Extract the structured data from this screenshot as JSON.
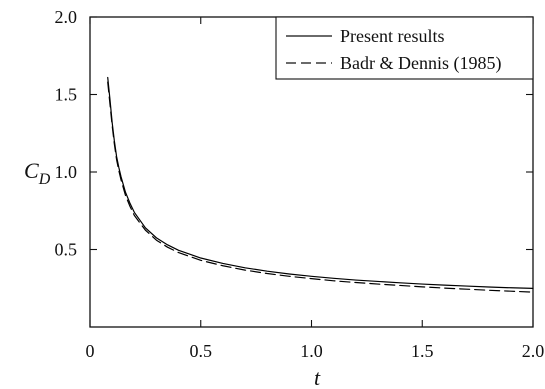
{
  "chart_data": {
    "type": "line",
    "title": "",
    "xlabel": "t",
    "ylabel": "C_D",
    "ylabel_main": "C",
    "ylabel_sub": "D",
    "xlim": [
      0,
      2.0
    ],
    "ylim": [
      0,
      2.0
    ],
    "x_ticks": [
      {
        "value": 0,
        "label": "0"
      },
      {
        "value": 0.5,
        "label": "0.5"
      },
      {
        "value": 1.0,
        "label": "1.0"
      },
      {
        "value": 1.5,
        "label": "1.5"
      },
      {
        "value": 2.0,
        "label": "2.0"
      }
    ],
    "y_ticks": [
      {
        "value": 0.5,
        "label": "0.5"
      },
      {
        "value": 1.0,
        "label": "1.0"
      },
      {
        "value": 1.5,
        "label": "1.5"
      },
      {
        "value": 2.0,
        "label": "2.0"
      }
    ],
    "grid": false,
    "legend_position": "top-right",
    "series": [
      {
        "name": "Present results",
        "line_style": "solid",
        "color": "#000000",
        "x": [
          0.08,
          0.09,
          0.1,
          0.11,
          0.12,
          0.13,
          0.14,
          0.16,
          0.18,
          0.2,
          0.25,
          0.3,
          0.35,
          0.4,
          0.5,
          0.6,
          0.7,
          0.8,
          0.9,
          1.0,
          1.1,
          1.2,
          1.3,
          1.4,
          1.5,
          1.6,
          1.7,
          1.8,
          1.9,
          2.0
        ],
        "y": [
          1.61,
          1.47,
          1.32,
          1.2,
          1.1,
          1.03,
          0.97,
          0.87,
          0.8,
          0.74,
          0.64,
          0.575,
          0.53,
          0.495,
          0.445,
          0.41,
          0.382,
          0.36,
          0.342,
          0.327,
          0.314,
          0.303,
          0.294,
          0.285,
          0.277,
          0.27,
          0.264,
          0.258,
          0.253,
          0.249
        ]
      },
      {
        "name": "Badr & Dennis (1985)",
        "line_style": "dashed",
        "color": "#000000",
        "x": [
          0.08,
          0.09,
          0.1,
          0.11,
          0.12,
          0.13,
          0.14,
          0.16,
          0.18,
          0.2,
          0.25,
          0.3,
          0.35,
          0.4,
          0.5,
          0.6,
          0.7,
          0.8,
          0.9,
          1.0,
          1.1,
          1.2,
          1.3,
          1.4,
          1.5,
          1.6,
          1.7,
          1.8,
          1.9,
          2.0
        ],
        "y": [
          1.58,
          1.44,
          1.3,
          1.18,
          1.08,
          1.01,
          0.95,
          0.85,
          0.78,
          0.72,
          0.625,
          0.56,
          0.515,
          0.48,
          0.43,
          0.395,
          0.367,
          0.345,
          0.327,
          0.312,
          0.298,
          0.287,
          0.277,
          0.268,
          0.259,
          0.251,
          0.244,
          0.237,
          0.231,
          0.225
        ]
      }
    ]
  }
}
